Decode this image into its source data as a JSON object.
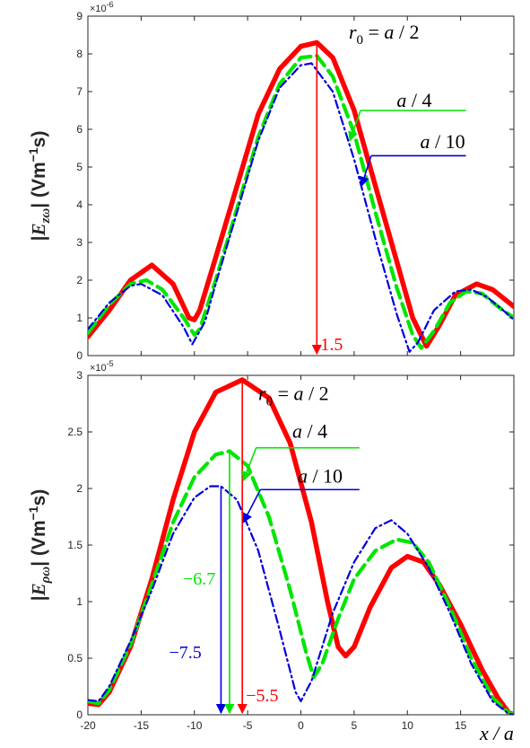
{
  "colors": {
    "r0_a2": "#ff0000",
    "r0_a4": "#00e600",
    "r0_a10": "#0000dd",
    "axis": "#262626",
    "background": "#ffffff"
  },
  "chart_data": [
    {
      "type": "line",
      "ylabel": "|E_zω| (Vm⁻¹s)",
      "ylabel_parts": {
        "open": "|",
        "sym": "E",
        "sub": "zω",
        "close": "|",
        "unit": " (Vm",
        "sup": "−1",
        "tail": "s)"
      },
      "y_multiplier": "×10",
      "y_multiplier_exp": "-6",
      "xlim": [
        -20,
        20
      ],
      "ylim": [
        0,
        9
      ],
      "xticks": [
        -20,
        -15,
        -10,
        -5,
        0,
        5,
        10,
        15
      ],
      "yticks": [
        0,
        1,
        2,
        3,
        4,
        5,
        6,
        7,
        8,
        9
      ],
      "show_xtick_labels": false,
      "series": [
        {
          "key": "r0_a2",
          "color": "#ff0000",
          "style": "solid",
          "points": [
            [
              -20,
              0.5
            ],
            [
              -18,
              1.2
            ],
            [
              -16,
              2.0
            ],
            [
              -14,
              2.4
            ],
            [
              -12,
              1.9
            ],
            [
              -10.5,
              1.0
            ],
            [
              -10,
              0.95
            ],
            [
              -9.5,
              1.2
            ],
            [
              -8,
              2.6
            ],
            [
              -6,
              4.5
            ],
            [
              -4,
              6.4
            ],
            [
              -2,
              7.6
            ],
            [
              0,
              8.2
            ],
            [
              1.5,
              8.3
            ],
            [
              3,
              7.9
            ],
            [
              5,
              6.5
            ],
            [
              7,
              4.5
            ],
            [
              9,
              2.5
            ],
            [
              10.5,
              1.0
            ],
            [
              11.8,
              0.25
            ],
            [
              13,
              0.8
            ],
            [
              14.5,
              1.6
            ],
            [
              16.5,
              1.9
            ],
            [
              18,
              1.75
            ],
            [
              20,
              1.3
            ]
          ]
        },
        {
          "key": "r0_a4",
          "color": "#00e600",
          "style": "dashed",
          "points": [
            [
              -20,
              0.6
            ],
            [
              -18,
              1.35
            ],
            [
              -16,
              1.9
            ],
            [
              -14.5,
              2.0
            ],
            [
              -13,
              1.75
            ],
            [
              -11,
              1.0
            ],
            [
              -10,
              0.55
            ],
            [
              -9.5,
              0.7
            ],
            [
              -8,
              2.0
            ],
            [
              -6,
              3.9
            ],
            [
              -4,
              5.8
            ],
            [
              -2,
              7.2
            ],
            [
              0,
              7.9
            ],
            [
              1.5,
              7.95
            ],
            [
              3,
              7.4
            ],
            [
              5,
              5.9
            ],
            [
              7,
              3.8
            ],
            [
              9,
              1.8
            ],
            [
              10.5,
              0.55
            ],
            [
              11.3,
              0.2
            ],
            [
              12.5,
              0.65
            ],
            [
              14,
              1.4
            ],
            [
              15.5,
              1.7
            ],
            [
              17,
              1.65
            ],
            [
              18.5,
              1.3
            ],
            [
              20,
              1.0
            ]
          ]
        },
        {
          "key": "r0_a10",
          "color": "#0000dd",
          "style": "dashdot",
          "points": [
            [
              -20,
              0.7
            ],
            [
              -18,
              1.4
            ],
            [
              -16,
              1.85
            ],
            [
              -15,
              1.9
            ],
            [
              -13,
              1.6
            ],
            [
              -11,
              0.75
            ],
            [
              -10.2,
              0.3
            ],
            [
              -9,
              0.9
            ],
            [
              -8,
              1.9
            ],
            [
              -6,
              3.8
            ],
            [
              -4,
              5.7
            ],
            [
              -2,
              7.1
            ],
            [
              0,
              7.7
            ],
            [
              1,
              7.75
            ],
            [
              3,
              7.0
            ],
            [
              5,
              5.2
            ],
            [
              7,
              3.1
            ],
            [
              9,
              1.1
            ],
            [
              10.2,
              0.1
            ],
            [
              11,
              0.35
            ],
            [
              12.5,
              1.2
            ],
            [
              14.5,
              1.7
            ],
            [
              16,
              1.75
            ],
            [
              17.5,
              1.55
            ],
            [
              19,
              1.2
            ],
            [
              20,
              0.95
            ]
          ]
        }
      ],
      "vmarkers": [
        {
          "key": "r0_a2",
          "x": 1.5,
          "y_top": 8.3,
          "label": "1.5",
          "label_dx": 4
        }
      ],
      "annotations": [
        {
          "key": "r0_a2",
          "text_it": "r",
          "sub": "0",
          "rest": " = a / 2",
          "tx": 4.5,
          "ty": 8.4,
          "ax": null,
          "ay": null
        },
        {
          "key": "r0_a4",
          "text_it": "a",
          "sub": "",
          "rest": " / 4",
          "tx": 9.0,
          "ty": 6.6,
          "line": [
            [
              5.6,
              6.5
            ],
            [
              15.5,
              6.5
            ]
          ],
          "arrow_to": [
            4.6,
            5.7
          ]
        },
        {
          "key": "r0_a10",
          "text_it": "a",
          "sub": "",
          "rest": " / 10",
          "tx": 11.2,
          "ty": 5.5,
          "line": [
            [
              6.6,
              5.3
            ],
            [
              15.5,
              5.3
            ]
          ],
          "arrow_to": [
            5.7,
            4.5
          ]
        }
      ]
    },
    {
      "type": "line",
      "ylabel": "|E_ρω| (Vm⁻¹s)",
      "ylabel_parts": {
        "open": "|",
        "sym": "E",
        "sub": "ρω",
        "close": "|",
        "unit": " (Vm",
        "sup": "−1",
        "tail": "s)"
      },
      "y_multiplier": "×10",
      "y_multiplier_exp": "-5",
      "xlabel": "x / a",
      "xlim": [
        -20,
        20
      ],
      "ylim": [
        0,
        3
      ],
      "xticks": [
        -20,
        -15,
        -10,
        -5,
        0,
        5,
        10,
        15
      ],
      "yticks": [
        0,
        0.5,
        1,
        1.5,
        2,
        2.5,
        3
      ],
      "ytick_labels": [
        "0",
        "0.5",
        "1",
        "1.5",
        "2",
        "2.5",
        "3"
      ],
      "show_xtick_labels": true,
      "series": [
        {
          "key": "r0_a2",
          "color": "#ff0000",
          "style": "solid",
          "points": [
            [
              -20,
              0.1
            ],
            [
              -19,
              0.09
            ],
            [
              -18,
              0.2
            ],
            [
              -16,
              0.6
            ],
            [
              -14,
              1.2
            ],
            [
              -12,
              1.9
            ],
            [
              -10,
              2.5
            ],
            [
              -8,
              2.85
            ],
            [
              -5.5,
              2.96
            ],
            [
              -3,
              2.8
            ],
            [
              -1,
              2.4
            ],
            [
              1,
              1.7
            ],
            [
              2.5,
              1.0
            ],
            [
              3.5,
              0.6
            ],
            [
              4.2,
              0.52
            ],
            [
              5,
              0.6
            ],
            [
              6.5,
              0.95
            ],
            [
              8.5,
              1.3
            ],
            [
              10,
              1.4
            ],
            [
              11.5,
              1.35
            ],
            [
              13,
              1.15
            ],
            [
              15,
              0.8
            ],
            [
              17,
              0.4
            ],
            [
              18.5,
              0.15
            ],
            [
              19.5,
              0.02
            ],
            [
              20,
              0.0
            ]
          ]
        },
        {
          "key": "r0_a4",
          "color": "#00e600",
          "style": "dashed",
          "points": [
            [
              -20,
              0.12
            ],
            [
              -19,
              0.1
            ],
            [
              -18,
              0.22
            ],
            [
              -16,
              0.62
            ],
            [
              -14,
              1.15
            ],
            [
              -12,
              1.7
            ],
            [
              -10,
              2.1
            ],
            [
              -8,
              2.3
            ],
            [
              -6.7,
              2.33
            ],
            [
              -5,
              2.2
            ],
            [
              -3,
              1.75
            ],
            [
              -1,
              1.1
            ],
            [
              0.5,
              0.55
            ],
            [
              1.2,
              0.33
            ],
            [
              2,
              0.45
            ],
            [
              3.5,
              0.85
            ],
            [
              5,
              1.2
            ],
            [
              7,
              1.45
            ],
            [
              9,
              1.55
            ],
            [
              10.5,
              1.52
            ],
            [
              12,
              1.35
            ],
            [
              14,
              0.95
            ],
            [
              16,
              0.5
            ],
            [
              18,
              0.15
            ],
            [
              19.5,
              0.02
            ],
            [
              20,
              0.0
            ]
          ]
        },
        {
          "key": "r0_a10",
          "color": "#0000dd",
          "style": "dashdot",
          "points": [
            [
              -20,
              0.13
            ],
            [
              -19,
              0.12
            ],
            [
              -18,
              0.25
            ],
            [
              -16,
              0.65
            ],
            [
              -14,
              1.1
            ],
            [
              -12,
              1.6
            ],
            [
              -10,
              1.92
            ],
            [
              -8.5,
              2.02
            ],
            [
              -7.5,
              2.02
            ],
            [
              -6,
              1.9
            ],
            [
              -4,
              1.45
            ],
            [
              -2,
              0.75
            ],
            [
              -0.5,
              0.2
            ],
            [
              0,
              0.12
            ],
            [
              1,
              0.3
            ],
            [
              3,
              0.9
            ],
            [
              5,
              1.35
            ],
            [
              7,
              1.65
            ],
            [
              8.5,
              1.72
            ],
            [
              10,
              1.6
            ],
            [
              12,
              1.3
            ],
            [
              14,
              0.9
            ],
            [
              16,
              0.45
            ],
            [
              18,
              0.12
            ],
            [
              19.5,
              0.01
            ],
            [
              20,
              0.0
            ]
          ]
        }
      ],
      "vmarkers": [
        {
          "key": "r0_a10",
          "x": -7.5,
          "y_top": 2.02,
          "label": "−7.5",
          "label_dx": -58,
          "label_y": 0.5
        },
        {
          "key": "r0_a4",
          "x": -6.7,
          "y_top": 2.33,
          "label": "−6.7",
          "label_dx": -52,
          "label_y": 1.15
        },
        {
          "key": "r0_a2",
          "x": -5.5,
          "y_top": 2.96,
          "label": "−5.5",
          "label_dx": 4,
          "label_y": 0.12
        }
      ],
      "annotations": [
        {
          "key": "r0_a2",
          "text_it": "r",
          "sub": "0",
          "rest": " = a / 2",
          "tx": -4.0,
          "ty": 2.78,
          "ax": null,
          "ay": null
        },
        {
          "key": "r0_a4",
          "text_it": "a",
          "sub": "",
          "rest": " / 4",
          "tx": -0.8,
          "ty": 2.45,
          "line": [
            [
              -4.2,
              2.36
            ],
            [
              5.5,
              2.36
            ]
          ],
          "arrow_to": [
            -5.4,
            2.07
          ]
        },
        {
          "key": "r0_a10",
          "text_it": "a",
          "sub": "",
          "rest": " / 10",
          "tx": -0.3,
          "ty": 2.05,
          "line": [
            [
              -3.8,
              1.99
            ],
            [
              5.5,
              1.99
            ]
          ],
          "arrow_to": [
            -5.4,
            1.7
          ]
        }
      ]
    }
  ]
}
